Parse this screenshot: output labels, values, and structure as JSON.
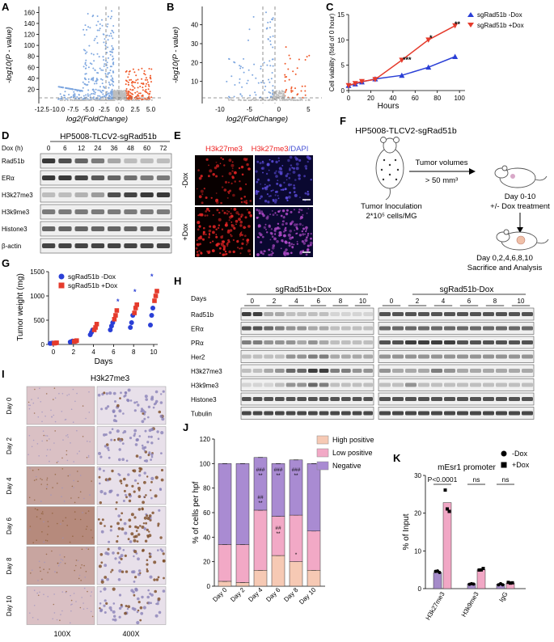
{
  "panels": {
    "A": {
      "label": "A",
      "xlabel": "log2(FoldChange)",
      "ylabel": "-log10(P - value)",
      "xticks": [
        "-12.5",
        "-10.0",
        "-7.5",
        "-5.0",
        "-2.5",
        "0.0",
        "2.5",
        "5.0"
      ],
      "yticks": [
        "20",
        "40",
        "60",
        "80",
        "100",
        "120",
        "140",
        "160"
      ],
      "chart_data": {
        "type": "scatter",
        "title": "",
        "xlim": [
          -13,
          6.5
        ],
        "ylim": [
          0,
          165
        ],
        "thresholds": {
          "x": [
            -1,
            1
          ],
          "y": 1.3
        },
        "down_color": "#7ea7e0",
        "up_color": "#f05a2a"
      }
    },
    "B": {
      "label": "B",
      "xlabel": "log2(FoldChange)",
      "ylabel": "-log10(P - value)",
      "xticks": [
        "-10",
        "-5",
        "0",
        "5"
      ],
      "yticks": [
        "10",
        "20",
        "30",
        "40"
      ],
      "chart_data": {
        "type": "scatter",
        "title": "",
        "xlim": [
          -13,
          7
        ],
        "ylim": [
          0,
          48
        ],
        "thresholds": {
          "x": [
            -1,
            1
          ],
          "y": 1.3
        },
        "down_color": "#7ea7e0",
        "up_color": "#f05a2a"
      }
    },
    "C": {
      "label": "C",
      "ylabel": "Cell viability (fold of 0 hour)",
      "xlabel": "Hours",
      "yticks": [
        "0",
        "5",
        "10",
        "15"
      ],
      "xticks": [
        "0",
        "20",
        "40",
        "60",
        "80",
        "100"
      ],
      "sig": [
        "***",
        "*",
        "**"
      ],
      "chart_data": {
        "type": "line",
        "x": [
          0,
          6,
          12,
          24,
          48,
          72,
          96
        ],
        "xlim": [
          0,
          105
        ],
        "ylim": [
          0,
          15
        ],
        "series": [
          {
            "name": "sgRad51b -Dox",
            "color": "#2a3fd6",
            "marker": "triangle-up",
            "values": [
              1.0,
              1.3,
              1.7,
              2.3,
              3.0,
              4.6,
              6.7
            ]
          },
          {
            "name": "sgRad51b +Dox",
            "color": "#e53b2c",
            "marker": "triangle-down",
            "values": [
              1.0,
              1.4,
              1.8,
              2.2,
              6.0,
              10.0,
              12.8
            ]
          }
        ]
      }
    },
    "D": {
      "label": "D",
      "title": "HP5008-TLCV2-sgRad51b",
      "dox_label": "Dox (h)",
      "timepoints": [
        "0",
        "6",
        "12",
        "24",
        "36",
        "48",
        "60",
        "72"
      ],
      "rows": [
        "Rad51b",
        "ERα",
        "H3k27me3",
        "H3k9me3",
        "Histone3",
        "β-actin"
      ]
    },
    "E": {
      "label": "E",
      "col1": "H3k27me3",
      "col2_a": "H3k27me3",
      "col2_b": "/DAPI",
      "rows": [
        "-Dox",
        "+Dox"
      ]
    },
    "F": {
      "label": "F",
      "title": "HP5008-TLCV2-sgRad51b",
      "arrow_text_1": "Tumor volumes",
      "arrow_text_2": "> 50 mm³",
      "inoculation_1": "Tumor Inoculation",
      "inoculation_2": "2*10⁵ cells/MG",
      "treatment_1": "Day 0-10",
      "treatment_2": "+/- Dox treatment",
      "analysis_1": "Day 0,2,4,6,8,10",
      "analysis_2": "Sacrifice and Analysis"
    },
    "G": {
      "label": "G",
      "ylabel": "Tumor weight (mg)",
      "xlabel": "Days",
      "yticks": [
        "0",
        "500",
        "1000",
        "1500"
      ],
      "xticks": [
        "0",
        "2",
        "4",
        "6",
        "8",
        "10"
      ],
      "sig": [
        "*",
        "*",
        "*"
      ],
      "chart_data": {
        "type": "scatter",
        "x": [
          0,
          2,
          4,
          6,
          8,
          10
        ],
        "ylim": [
          0,
          1500
        ],
        "series": [
          {
            "name": "sgRad51b -Dox",
            "color": "#2a3fd6",
            "marker": "circle",
            "values": [
              [
                20,
                25,
                30
              ],
              [
                50,
                60,
                70
              ],
              [
                200,
                250,
                300
              ],
              [
                300,
                380,
                450
              ],
              [
                350,
                450,
                600
              ],
              [
                400,
                600,
                750
              ]
            ]
          },
          {
            "name": "sgRad51b +Dox",
            "color": "#e53b2c",
            "marker": "square",
            "values": [
              [
                25,
                30,
                35
              ],
              [
                60,
                70,
                80
              ],
              [
                300,
                350,
                420
              ],
              [
                520,
                600,
                700
              ],
              [
                650,
                750,
                820
              ],
              [
                900,
                1000,
                1100
              ]
            ]
          }
        ]
      }
    },
    "H": {
      "label": "H",
      "group1": "sgRad51b+Dox",
      "group2": "sgRad51b-Dox",
      "days_label": "Days",
      "days": [
        "0",
        "2",
        "4",
        "6",
        "8",
        "10"
      ],
      "rows": [
        "Rad51b",
        "ERα",
        "PRα",
        "Her2",
        "H3k27me3",
        "H3k9me3",
        "Histone3",
        "Tubulin"
      ]
    },
    "I": {
      "label": "I",
      "title": "H3k27me3",
      "rows": [
        "Day 0",
        "Day 2",
        "Day 4",
        "Day 6",
        "Day 8",
        "Day 10"
      ],
      "mag1": "100X",
      "mag2": "400X"
    },
    "J": {
      "label": "J",
      "ylabel": "% of cells per hpf",
      "yticks": [
        "0",
        "20",
        "40",
        "60",
        "80",
        "100",
        "120"
      ],
      "hash_label": "###",
      "hash2_label": "##",
      "star2_label": "**",
      "star1_label": "*",
      "chart_data": {
        "type": "bar",
        "stacked": true,
        "categories": [
          "Day 0",
          "Day 2",
          "Day 4",
          "Day 6",
          "Day 8",
          "Day 10"
        ],
        "ylim": [
          0,
          120
        ],
        "series": [
          {
            "name": "High positive",
            "color": "#f6c9b4",
            "values": [
              4,
              3,
              13,
              25,
              20,
              13
            ]
          },
          {
            "name": "Low positive",
            "color": "#f2a9c6",
            "values": [
              30,
              31,
              49,
              32,
              38,
              32
            ]
          },
          {
            "name": "Negative",
            "color": "#a98bd2",
            "values": [
              66,
              66,
              43,
              43,
              45,
              55
            ]
          }
        ]
      }
    },
    "K": {
      "label": "K",
      "title": "mEsr1 promoter",
      "ylabel": "% of Input",
      "yticks": [
        "0",
        "10",
        "20",
        "30"
      ],
      "pvalue": "P<0.0001",
      "ns": "ns",
      "legend_minus": "-Dox",
      "legend_plus": "+Dox",
      "chart_data": {
        "type": "bar",
        "categories": [
          "H3k27me3",
          "H3k9me3",
          "IgG"
        ],
        "ylim": [
          0,
          30
        ],
        "series": [
          {
            "name": "-Dox",
            "color": "#a58bc9",
            "values": [
              4.2,
              1.3,
              1.2
            ]
          },
          {
            "name": "+Dox",
            "color": "#f1a7c5",
            "values": [
              22.8,
              5.0,
              1.5
            ]
          }
        ]
      }
    }
  }
}
